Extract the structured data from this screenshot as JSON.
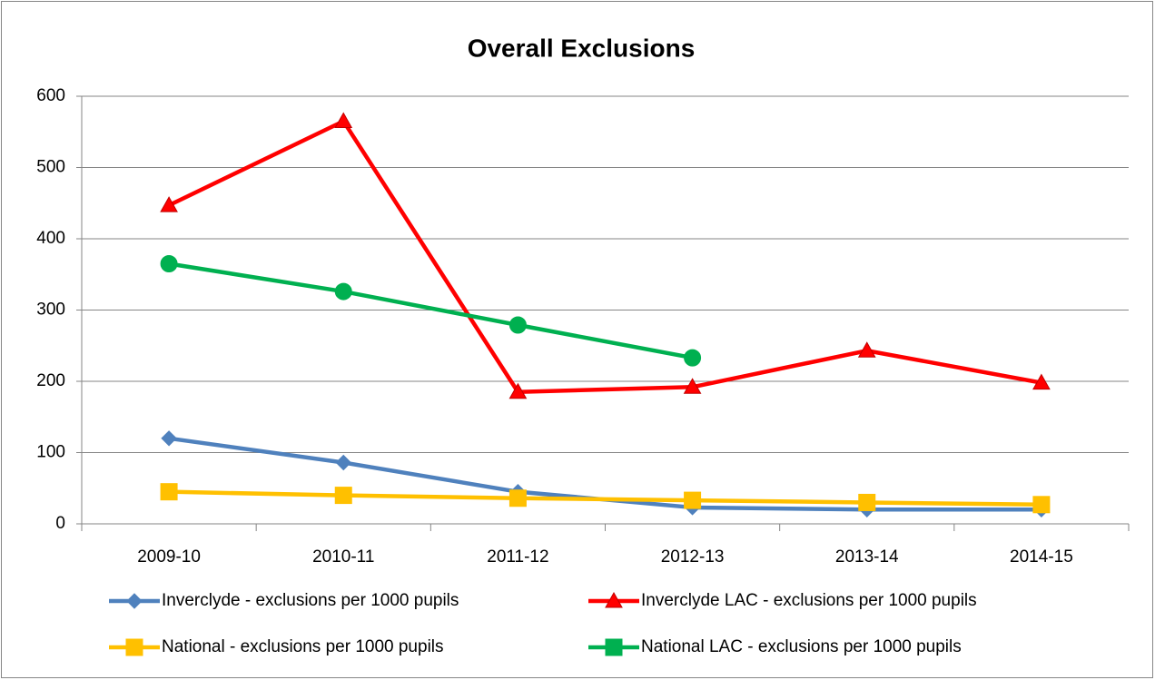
{
  "chart_data": {
    "type": "line",
    "title": "Overall Exclusions",
    "categories": [
      "2009-10",
      "2010-11",
      "2011-12",
      "2012-13",
      "2013-14",
      "2014-15"
    ],
    "series": [
      {
        "name": "Inverclyde - exclusions per 1000 pupils",
        "color": "#4f81bd",
        "marker": "diamond",
        "values": [
          120,
          86,
          45,
          23,
          20,
          20
        ]
      },
      {
        "name": "Inverclyde LAC - exclusions per 1000 pupils",
        "color": "#ff0000",
        "marker": "triangle",
        "values": [
          447,
          565,
          185,
          192,
          243,
          198
        ]
      },
      {
        "name": "National - exclusions per 1000 pupils",
        "color": "#ffc000",
        "marker": "square",
        "values": [
          45,
          40,
          36,
          33,
          30,
          27
        ]
      },
      {
        "name": "National LAC - exclusions per 1000 pupils",
        "color": "#00b050",
        "marker": "circle",
        "values": [
          365,
          326,
          279,
          233,
          null,
          null
        ]
      }
    ],
    "ylim": [
      0,
      600
    ],
    "yticks": [
      0,
      100,
      200,
      300,
      400,
      500,
      600
    ],
    "grid": true
  }
}
